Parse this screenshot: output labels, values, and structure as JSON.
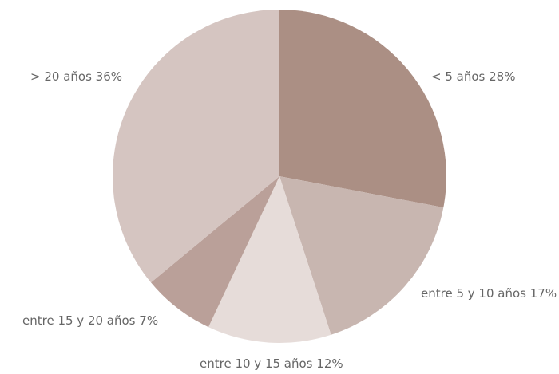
{
  "chart_data": {
    "type": "pie",
    "categories": [
      "< 5 años",
      "entre 5 y 10 años",
      "entre 10 y 15 años",
      "entre 15 y 20 años",
      "> 20 años"
    ],
    "values": [
      28,
      17,
      12,
      7,
      36
    ],
    "value_labels": [
      "28%",
      "17%",
      "12%",
      "7%",
      "36%"
    ],
    "colors": [
      "#ab8f84",
      "#c8b6b0",
      "#e6dcd9",
      "#baa099",
      "#d5c5c1"
    ]
  }
}
